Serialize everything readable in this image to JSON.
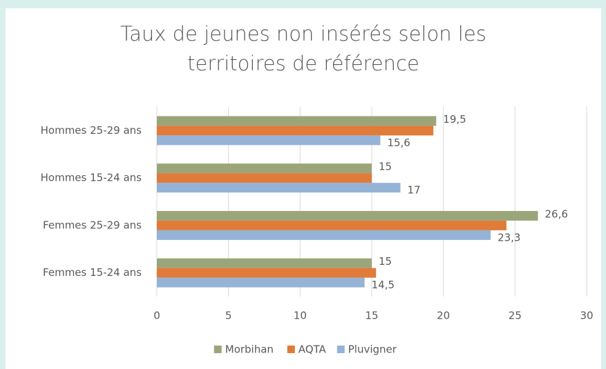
{
  "chart_data": {
    "type": "hbar",
    "title": "Taux de jeunes non insérés selon les territoires de référence",
    "categories": [
      "Hommes 25-29 ans",
      "Hommes 15-24 ans",
      "Femmes 25-29 ans",
      "Femmes 15-24 ans"
    ],
    "series": [
      {
        "name": "Morbihan",
        "color": "#9ba57a",
        "values": [
          19.5,
          15,
          26.6,
          15
        ],
        "value_labels": [
          "19,5",
          "15",
          "26,6",
          "15"
        ]
      },
      {
        "name": "AQTA",
        "color": "#e07b39",
        "values": [
          19.3,
          15,
          24.4,
          15.3
        ]
      },
      {
        "name": "Pluvigner",
        "color": "#95b3d7",
        "values": [
          15.6,
          17,
          23.3,
          14.5
        ],
        "value_labels": [
          "15,6",
          "17",
          "23,3",
          "14,5"
        ]
      }
    ],
    "xlim": [
      0,
      30
    ],
    "xticks": [
      0,
      5,
      10,
      15,
      20,
      25,
      30
    ],
    "grid": true,
    "legend": "bottom"
  }
}
